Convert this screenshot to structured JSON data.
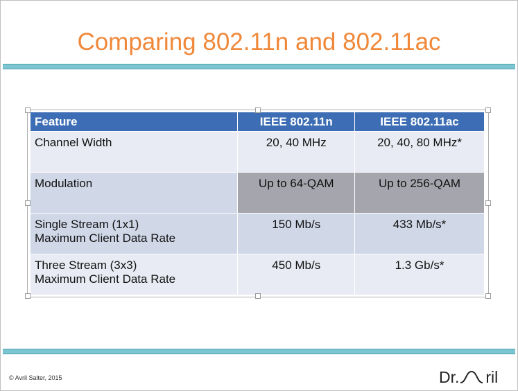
{
  "header": {
    "title": "Comparing 802.11n and 802.11ac"
  },
  "table": {
    "columns": [
      "Feature",
      "IEEE 802.11n",
      "IEEE 802.11ac"
    ],
    "rows": [
      [
        [
          "Channel Width"
        ],
        [
          "20, 40 MHz"
        ],
        [
          "20, 40, 80 MHz*"
        ]
      ],
      [
        [
          "Modulation"
        ],
        [
          "Up to 64-QAM"
        ],
        [
          "Up to 256-QAM"
        ]
      ],
      [
        [
          "Single Stream (1x1)",
          "Maximum Client Data Rate"
        ],
        [
          "150 Mb/s"
        ],
        [
          "433 Mb/s*"
        ]
      ],
      [
        [
          "Three Stream (3x3)",
          "Maximum Client Data Rate"
        ],
        [
          "450 Mb/s"
        ],
        [
          "1.3 Gb/s*"
        ]
      ]
    ]
  },
  "footer": {
    "copyright": "© Avril Salter, 2015",
    "logo_prefix": "Dr.",
    "logo_suffix": "ril"
  }
}
